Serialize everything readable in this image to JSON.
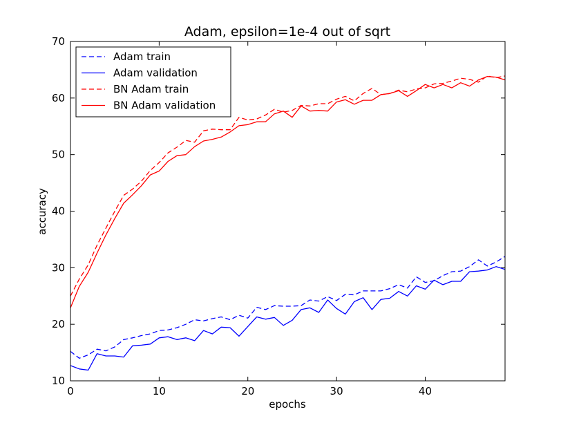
{
  "chart_data": {
    "type": "line",
    "title": "Adam, epsilon=1e-4 out of sqrt",
    "xlabel": "epochs",
    "ylabel": "accuracy",
    "xlim": [
      0,
      49
    ],
    "ylim": [
      10,
      70
    ],
    "x_ticks": [
      0,
      10,
      20,
      30,
      40
    ],
    "y_ticks": [
      10,
      20,
      30,
      40,
      50,
      60,
      70
    ],
    "grid": false,
    "legend_position": "top-left",
    "series": [
      {
        "name": "Adam train",
        "color": "#0000ff",
        "style": "dashed",
        "x": [
          0,
          1,
          2,
          3,
          4,
          5,
          6,
          7,
          8,
          9,
          10,
          11,
          12,
          13,
          14,
          15,
          16,
          17,
          18,
          19,
          20,
          21,
          22,
          23,
          24,
          25,
          26,
          27,
          28,
          29,
          30,
          31,
          32,
          33,
          34,
          35,
          36,
          37,
          38,
          39,
          40,
          41,
          42,
          43,
          44,
          45,
          46,
          47,
          48,
          49
        ],
        "y": [
          15.2,
          14.0,
          14.6,
          15.6,
          15.3,
          16.0,
          17.3,
          17.6,
          18.0,
          18.3,
          18.9,
          19.0,
          19.4,
          20.0,
          20.8,
          20.6,
          21.0,
          21.3,
          20.8,
          21.6,
          21.1,
          23.0,
          22.6,
          23.3,
          23.2,
          23.2,
          23.3,
          24.3,
          24.1,
          24.9,
          24.2,
          25.3,
          25.2,
          25.9,
          25.9,
          25.9,
          26.3,
          27.0,
          26.4,
          28.4,
          27.4,
          27.7,
          28.6,
          29.3,
          29.4,
          30.2,
          31.4,
          30.3,
          31.0,
          32.0
        ]
      },
      {
        "name": "Adam validation",
        "color": "#0000ff",
        "style": "solid",
        "x": [
          0,
          1,
          2,
          3,
          4,
          5,
          6,
          7,
          8,
          9,
          10,
          11,
          12,
          13,
          14,
          15,
          16,
          17,
          18,
          19,
          20,
          21,
          22,
          23,
          24,
          25,
          26,
          27,
          28,
          29,
          30,
          31,
          32,
          33,
          34,
          35,
          36,
          37,
          38,
          39,
          40,
          41,
          42,
          43,
          44,
          45,
          46,
          47,
          48,
          49
        ],
        "y": [
          12.7,
          12.1,
          11.9,
          14.8,
          14.4,
          14.4,
          14.2,
          16.2,
          16.3,
          16.5,
          17.6,
          17.8,
          17.3,
          17.6,
          17.1,
          18.9,
          18.3,
          19.5,
          19.4,
          17.9,
          19.6,
          21.3,
          20.9,
          21.2,
          19.8,
          20.7,
          22.6,
          22.9,
          22.1,
          24.3,
          22.8,
          21.8,
          24.0,
          24.7,
          22.6,
          24.4,
          24.6,
          25.8,
          25.0,
          26.8,
          26.2,
          27.8,
          27.0,
          27.6,
          27.6,
          29.3,
          29.4,
          29.6,
          30.2,
          29.7
        ]
      },
      {
        "name": "BN Adam train",
        "color": "#ff0000",
        "style": "dashed",
        "x": [
          0,
          1,
          2,
          3,
          4,
          5,
          6,
          7,
          8,
          9,
          10,
          11,
          12,
          13,
          14,
          15,
          16,
          17,
          18,
          19,
          20,
          21,
          22,
          23,
          24,
          25,
          26,
          27,
          28,
          29,
          30,
          31,
          32,
          33,
          34,
          35,
          36,
          37,
          38,
          39,
          40,
          41,
          42,
          43,
          44,
          45,
          46,
          47,
          48,
          49
        ],
        "y": [
          25.0,
          28.0,
          30.5,
          34.0,
          37.0,
          40.0,
          42.8,
          43.9,
          45.3,
          47.2,
          48.6,
          50.3,
          51.3,
          52.5,
          52.2,
          54.2,
          54.5,
          54.4,
          54.4,
          56.6,
          56.1,
          56.3,
          57.0,
          58.0,
          57.5,
          57.8,
          58.7,
          58.6,
          59.0,
          59.0,
          59.8,
          60.3,
          59.5,
          60.8,
          61.7,
          60.6,
          60.8,
          61.4,
          61.1,
          61.6,
          61.8,
          62.5,
          62.6,
          63.0,
          63.5,
          63.3,
          62.8,
          63.9,
          63.6,
          63.9
        ]
      },
      {
        "name": "BN Adam validation",
        "color": "#ff0000",
        "style": "solid",
        "x": [
          0,
          1,
          2,
          3,
          4,
          5,
          6,
          7,
          8,
          9,
          10,
          11,
          12,
          13,
          14,
          15,
          16,
          17,
          18,
          19,
          20,
          21,
          22,
          23,
          24,
          25,
          26,
          27,
          28,
          29,
          30,
          31,
          32,
          33,
          34,
          35,
          36,
          37,
          38,
          39,
          40,
          41,
          42,
          43,
          44,
          45,
          46,
          47,
          48,
          49
        ],
        "y": [
          22.9,
          26.7,
          29.2,
          32.6,
          35.8,
          38.7,
          41.4,
          42.9,
          44.5,
          46.4,
          47.1,
          48.8,
          49.8,
          50.0,
          51.4,
          52.4,
          52.7,
          53.1,
          54.0,
          55.1,
          55.3,
          55.8,
          55.8,
          57.2,
          57.7,
          56.6,
          58.6,
          57.7,
          57.8,
          57.7,
          59.3,
          59.7,
          58.9,
          59.6,
          59.6,
          60.6,
          60.8,
          61.3,
          60.3,
          61.3,
          62.4,
          61.8,
          62.4,
          61.8,
          62.7,
          62.1,
          63.2,
          63.8,
          63.7,
          63.2
        ]
      }
    ]
  }
}
